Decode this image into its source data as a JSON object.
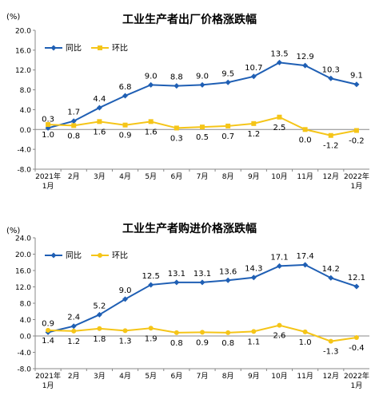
{
  "chart_data": [
    {
      "type": "line",
      "title": "工业生产者出厂价格涨跌幅",
      "unit": "(%)",
      "categories": [
        "2021年\n1月",
        "2月",
        "3月",
        "4月",
        "5月",
        "6月",
        "7月",
        "8月",
        "9月",
        "10月",
        "11月",
        "12月",
        "2022年\n1月"
      ],
      "ylim": [
        -8.0,
        20.0
      ],
      "yticks": [
        "20.0",
        "16.0",
        "12.0",
        "8.0",
        "4.0",
        "0.0",
        "-4.0",
        "-8.0"
      ],
      "legend_position": "top-left",
      "series": [
        {
          "name": "同比",
          "color": "#1f5fb4",
          "marker": "diamond",
          "values": [
            0.3,
            1.7,
            4.4,
            6.8,
            9.0,
            8.8,
            9.0,
            9.5,
            10.7,
            13.5,
            12.9,
            10.3,
            9.1
          ],
          "labels": [
            "0.3",
            "1.7",
            "4.4",
            "6.8",
            "9.0",
            "8.8",
            "9.0",
            "9.5",
            "10.7",
            "13.5",
            "12.9",
            "10.3",
            "9.1"
          ]
        },
        {
          "name": "环比",
          "color": "#f5c518",
          "marker": "square",
          "values": [
            1.0,
            0.8,
            1.6,
            0.9,
            1.6,
            0.3,
            0.5,
            0.7,
            1.2,
            2.5,
            0.0,
            -1.2,
            -0.2
          ],
          "labels": [
            "1.0",
            "0.8",
            "1.6",
            "0.9",
            "1.6",
            "0.3",
            "0.5",
            "0.7",
            "1.2",
            "2.5",
            "0.0",
            "-1.2",
            "-0.2"
          ]
        }
      ]
    },
    {
      "type": "line",
      "title": "工业生产者购进价格涨跌幅",
      "unit": "(%)",
      "categories": [
        "2021年\n1月",
        "2月",
        "3月",
        "4月",
        "5月",
        "6月",
        "7月",
        "8月",
        "9月",
        "10月",
        "11月",
        "12月",
        "2022年\n1月"
      ],
      "ylim": [
        -8.0,
        24.0
      ],
      "yticks": [
        "24.0",
        "20.0",
        "16.0",
        "12.0",
        "8.0",
        "4.0",
        "0.0",
        "-4.0",
        "-8.0"
      ],
      "legend_position": "top-left",
      "series": [
        {
          "name": "同比",
          "color": "#1f5fb4",
          "marker": "diamond",
          "values": [
            0.9,
            2.4,
            5.2,
            9.0,
            12.5,
            13.1,
            13.1,
            13.6,
            14.3,
            17.1,
            17.4,
            14.2,
            12.1
          ],
          "labels": [
            "0.9",
            "2.4",
            "5.2",
            "9.0",
            "12.5",
            "13.1",
            "13.1",
            "13.6",
            "14.3",
            "17.1",
            "17.4",
            "14.2",
            "12.1"
          ]
        },
        {
          "name": "环比",
          "color": "#f5c518",
          "marker": "circle",
          "values": [
            1.4,
            1.2,
            1.8,
            1.3,
            1.9,
            0.8,
            0.9,
            0.8,
            1.1,
            2.6,
            1.0,
            -1.3,
            -0.4
          ],
          "labels": [
            "1.4",
            "1.2",
            "1.8",
            "1.3",
            "1.9",
            "0.8",
            "0.9",
            "0.8",
            "1.1",
            "2.6",
            "1.0",
            "-1.3",
            "-0.4"
          ]
        }
      ]
    }
  ]
}
